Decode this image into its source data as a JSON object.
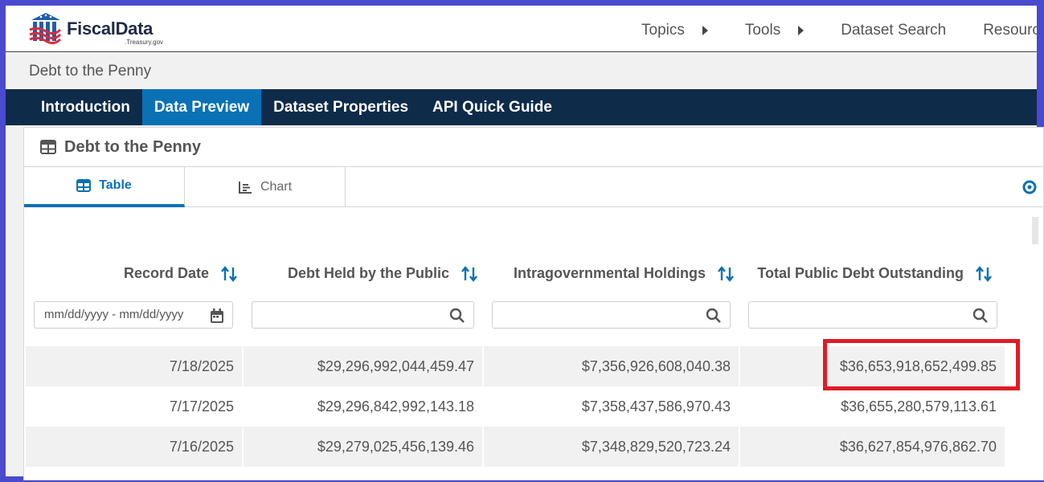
{
  "header": {
    "logo_word": "FiscalData",
    "logo_sub": ".Treasury.gov",
    "nav": [
      {
        "label": "Topics"
      },
      {
        "label": "Tools"
      },
      {
        "label": "Dataset Search"
      },
      {
        "label": "Resources"
      }
    ]
  },
  "breadcrumb": "Debt to the Penny",
  "dataset_nav": [
    {
      "label": "Introduction"
    },
    {
      "label": "Data Preview"
    },
    {
      "label": "Dataset Properties"
    },
    {
      "label": "API Quick Guide"
    }
  ],
  "card": {
    "title": "Debt to the Penny",
    "tabs": {
      "table": "Table",
      "chart": "Chart"
    }
  },
  "table": {
    "columns": [
      {
        "label": "Record Date",
        "filter_placeholder": "mm/dd/yyyy - mm/dd/yyyy"
      },
      {
        "label": "Debt Held by the Public",
        "filter_placeholder": ""
      },
      {
        "label": "Intragovernmental Holdings",
        "filter_placeholder": ""
      },
      {
        "label": "Total Public Debt Outstanding",
        "filter_placeholder": ""
      }
    ],
    "rows": [
      [
        "7/18/2025",
        "$29,296,992,044,459.47",
        "$7,356,926,608,040.38",
        "$36,653,918,652,499.85"
      ],
      [
        "7/17/2025",
        "$29,296,842,992,143.18",
        "$7,358,437,586,970.43",
        "$36,655,280,579,113.61"
      ],
      [
        "7/16/2025",
        "$29,279,025,456,139.46",
        "$7,348,829,520,723.24",
        "$36,627,854,976,862.70"
      ]
    ]
  },
  "colors": {
    "navy": "#0f2b4a",
    "accent": "#0a71b5",
    "highlight": "#e01b24"
  }
}
